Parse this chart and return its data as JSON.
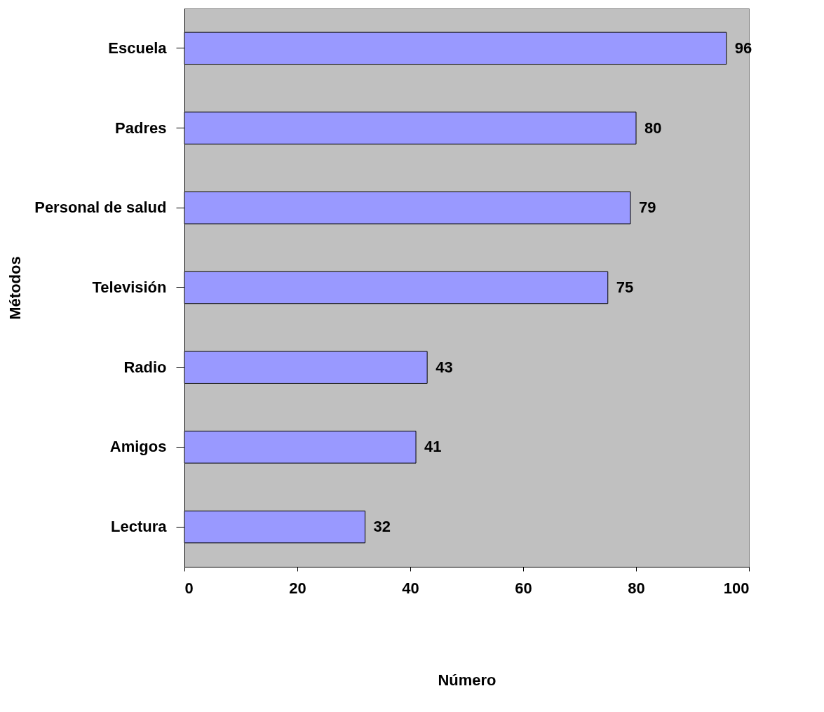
{
  "chart_data": {
    "type": "bar",
    "orientation": "horizontal",
    "xlabel": "Número",
    "ylabel": "Métodos",
    "categories": [
      "Escuela",
      "Padres",
      "Personal de salud",
      "Televisión",
      "Radio",
      "Amigos",
      "Lectura"
    ],
    "values": [
      96,
      80,
      79,
      75,
      43,
      41,
      32
    ],
    "color": "#9999ff",
    "xlim": [
      0,
      100
    ],
    "xticks": [
      0,
      20,
      40,
      60,
      80,
      100
    ],
    "data_labels": true
  }
}
